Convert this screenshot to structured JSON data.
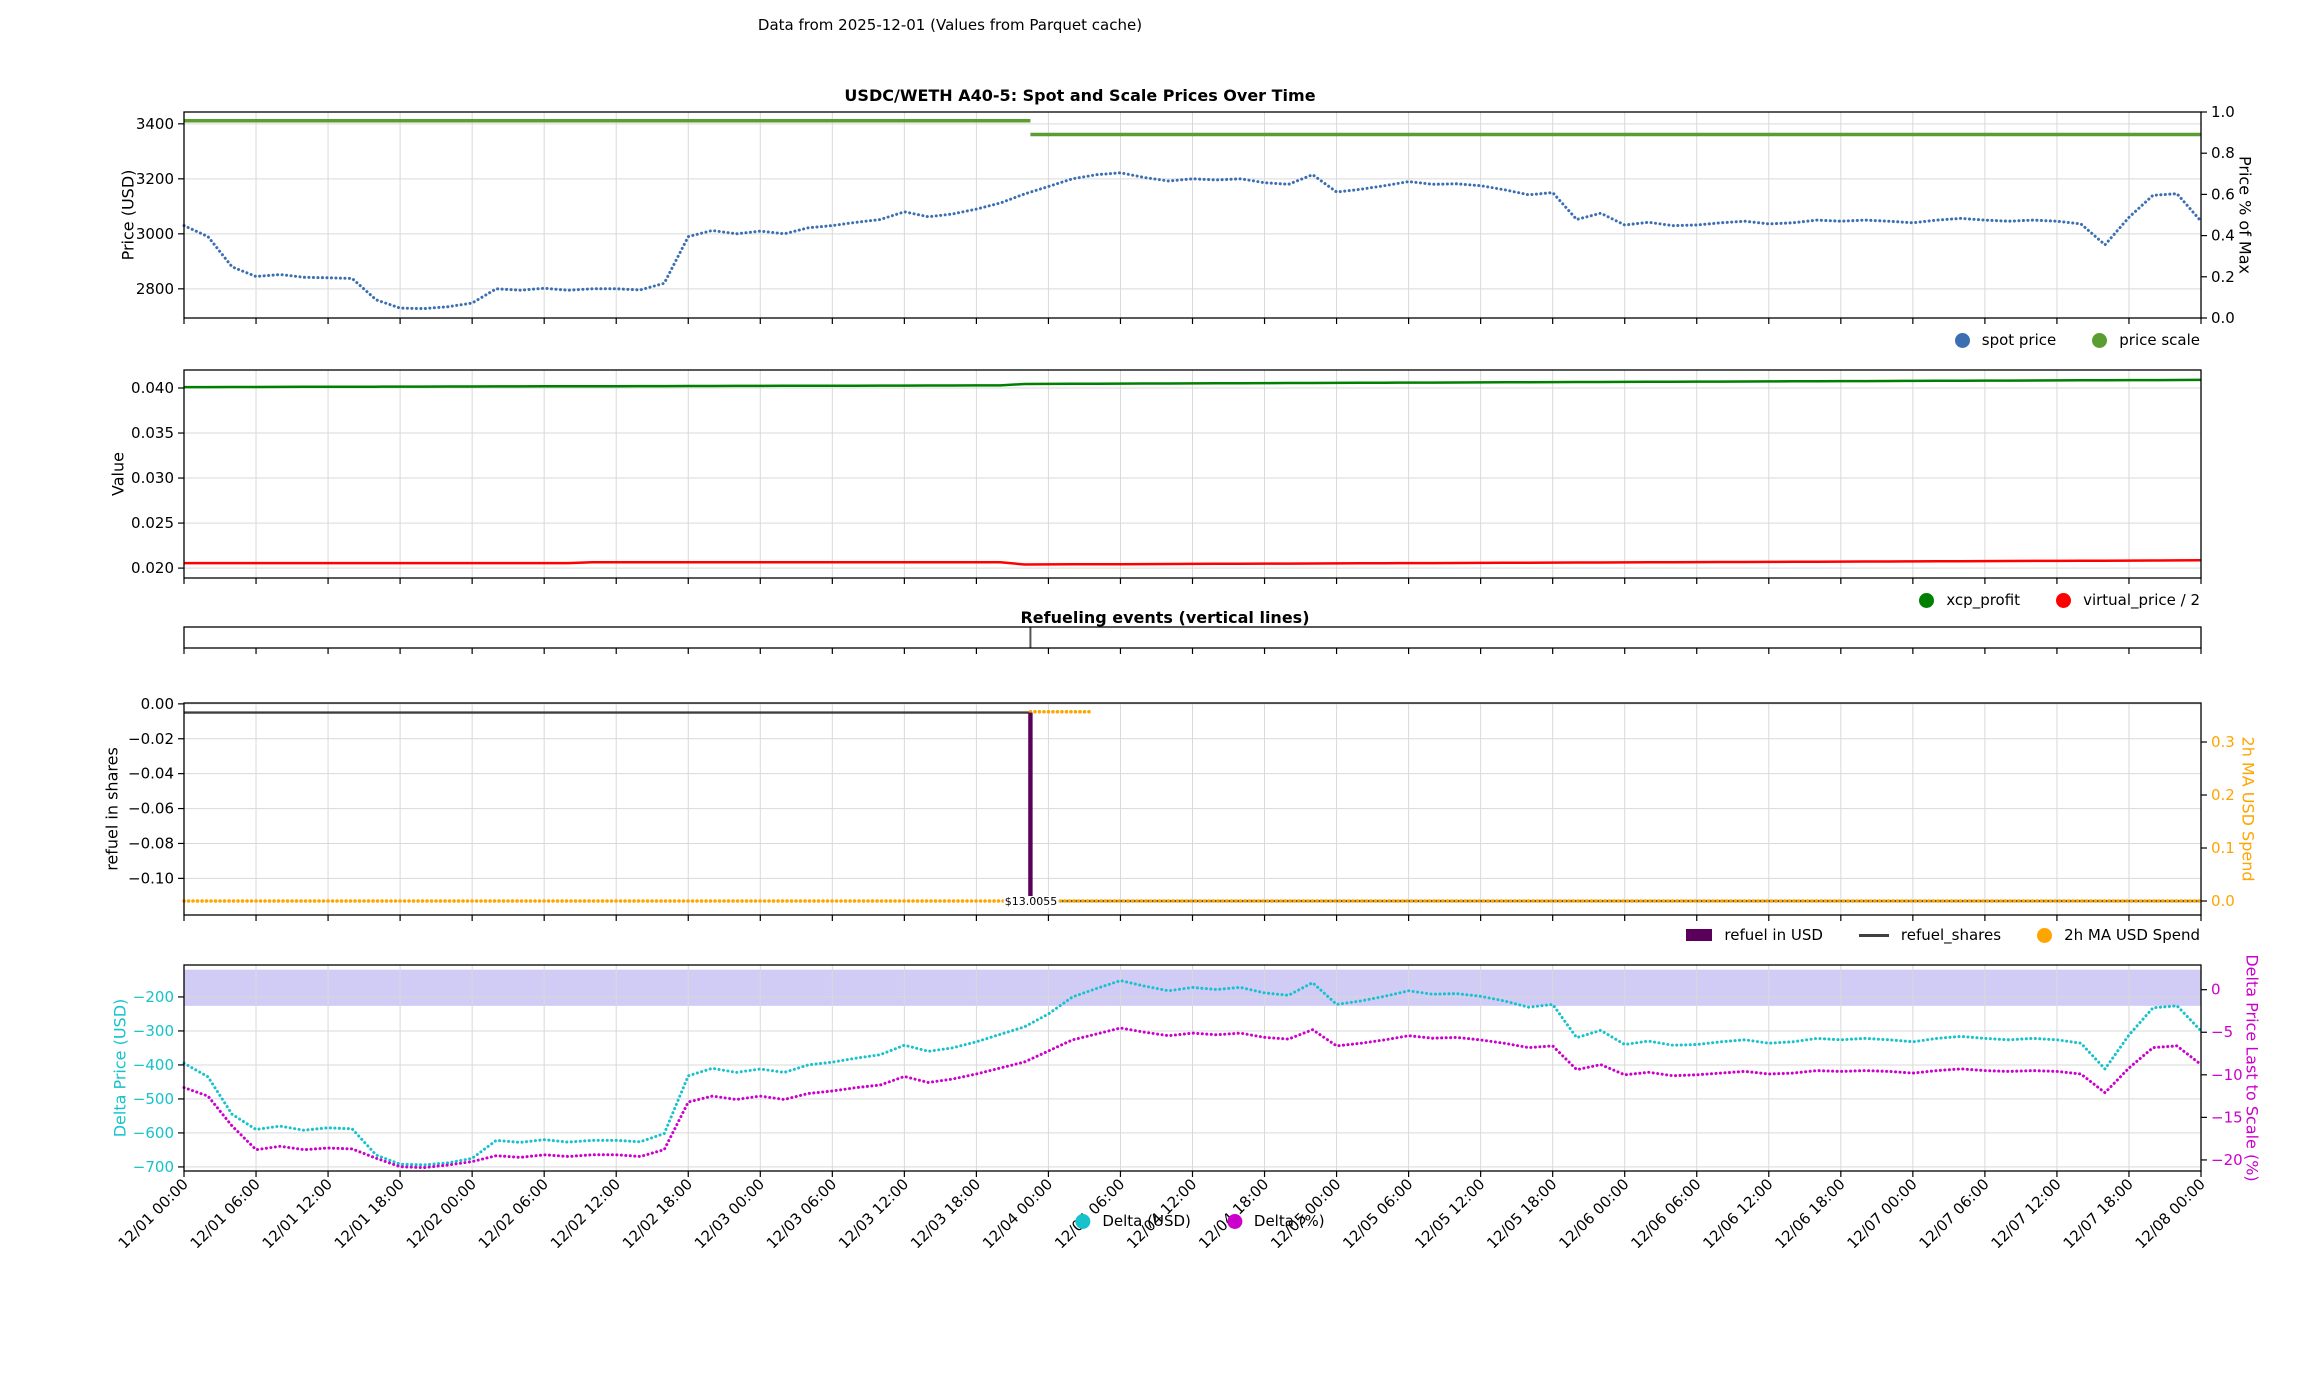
{
  "suptitle": "Data from 2025-12-01 (Values from Parquet cache)",
  "colors": {
    "spot": "#3b6fb2",
    "price_scale": "#5a9e32",
    "xcp_profit": "#008000",
    "virtual_price": "#ff0000",
    "refuel_usd": "#5a005a",
    "refuel_shares": "#404040",
    "usd_spend": "#ffa500",
    "delta_usd": "#16c2cb",
    "delta_pct": "#cc00cc",
    "band": "rgba(124,110,228,0.35)",
    "grid": "#d9d9d9",
    "event_line": "#555555"
  },
  "xticks": {
    "step_hours": 6,
    "labels": [
      "12/01 00:00",
      "12/01 06:00",
      "12/01 12:00",
      "12/01 18:00",
      "12/02 00:00",
      "12/02 06:00",
      "12/02 12:00",
      "12/02 18:00",
      "12/03 00:00",
      "12/03 06:00",
      "12/03 12:00",
      "12/03 18:00",
      "12/04 00:00",
      "12/04 06:00",
      "12/04 12:00",
      "12/04 18:00",
      "12/05 00:00",
      "12/05 06:00",
      "12/05 12:00",
      "12/05 18:00",
      "12/06 00:00",
      "12/06 06:00",
      "12/06 12:00",
      "12/06 18:00",
      "12/07 00:00",
      "12/07 06:00",
      "12/07 12:00",
      "12/07 18:00",
      "12/08 00:00"
    ]
  },
  "chart_data": [
    {
      "type": "line",
      "title": "USDC/WETH A40-5: Spot and Scale Prices Over Time",
      "ylabel": "Price (USD)",
      "ylabel_right": "Price % of Max",
      "ylim": [
        2694,
        3443
      ],
      "ylim_right": [
        0.0,
        1.0
      ],
      "yticks": {
        "values": [
          3400,
          3200,
          3000,
          2800
        ],
        "labels": [
          "3400",
          "3200",
          "3000",
          "2800"
        ]
      },
      "yticks_right": {
        "values": [
          1.0,
          0.8,
          0.6,
          0.4,
          0.2,
          0.0
        ],
        "labels": [
          "1.0",
          "0.8",
          "0.6",
          "0.4",
          "0.2",
          "0.0"
        ]
      },
      "x_start_hour": 0,
      "x_step_hours": 2,
      "series": [
        {
          "name": "spot price",
          "axis": "left",
          "style": "dotted",
          "width": 3,
          "color_key": "spot",
          "values": [
            3030,
            2990,
            2880,
            2845,
            2852,
            2842,
            2840,
            2838,
            2760,
            2730,
            2728,
            2735,
            2748,
            2800,
            2795,
            2802,
            2795,
            2800,
            2800,
            2796,
            2820,
            2990,
            3012,
            3000,
            3010,
            3000,
            3022,
            3030,
            3042,
            3052,
            3080,
            3062,
            3072,
            3090,
            3112,
            3145,
            3172,
            3200,
            3215,
            3222,
            3205,
            3192,
            3200,
            3196,
            3200,
            3186,
            3180,
            3215,
            3152,
            3162,
            3175,
            3190,
            3180,
            3182,
            3175,
            3160,
            3142,
            3150,
            3052,
            3075,
            3032,
            3042,
            3030,
            3032,
            3040,
            3046,
            3036,
            3040,
            3050,
            3046,
            3050,
            3046,
            3040,
            3050,
            3056,
            3050,
            3046,
            3050,
            3046,
            3036,
            2960,
            3060,
            3140,
            3146,
            3046
          ]
        }
      ],
      "segments": [
        {
          "name": "price scale",
          "axis": "left",
          "style": "solid",
          "width": 3.5,
          "color_key": "price_scale",
          "parts": [
            [
              0,
              70.5,
              3411
            ],
            [
              70.5,
              168,
              3361
            ]
          ]
        }
      ],
      "legend": [
        {
          "label": "spot price",
          "marker": "dot",
          "color_key": "spot"
        },
        {
          "label": "price scale",
          "marker": "dot",
          "color_key": "price_scale"
        }
      ]
    },
    {
      "type": "line",
      "ylabel": "Value",
      "ylim": [
        0.0189,
        0.042
      ],
      "yticks": {
        "values": [
          0.04,
          0.035,
          0.03,
          0.025,
          0.02
        ],
        "labels": [
          "0.040",
          "0.035",
          "0.030",
          "0.025",
          "0.020"
        ]
      },
      "x_start_hour": 0,
      "x_step_hours": 2,
      "series": [
        {
          "name": "xcp_profit",
          "axis": "left",
          "style": "solid",
          "width": 2.5,
          "color_key": "xcp_profit",
          "values": [
            0.0401,
            0.040106,
            0.040111,
            0.040117,
            0.040123,
            0.040129,
            0.040134,
            0.04014,
            0.040146,
            0.040151,
            0.040157,
            0.040163,
            0.040168,
            0.040174,
            0.04018,
            0.040186,
            0.040191,
            0.040197,
            0.040203,
            0.040208,
            0.040214,
            0.04022,
            0.040225,
            0.040231,
            0.040237,
            0.040243,
            0.040248,
            0.040254,
            0.04026,
            0.040265,
            0.040271,
            0.040277,
            0.040282,
            0.040288,
            0.040294,
            0.04045,
            0.040459,
            0.040468,
            0.040478,
            0.040487,
            0.040496,
            0.040505,
            0.040514,
            0.040524,
            0.040533,
            0.040542,
            0.040551,
            0.04056,
            0.04057,
            0.040579,
            0.040588,
            0.040597,
            0.040606,
            0.040616,
            0.040625,
            0.040634,
            0.040643,
            0.040652,
            0.040662,
            0.040671,
            0.04068,
            0.040689,
            0.040698,
            0.040708,
            0.040717,
            0.040726,
            0.040735,
            0.040744,
            0.040754,
            0.040763,
            0.040772,
            0.040781,
            0.04079,
            0.0408,
            0.040809,
            0.040818,
            0.040827,
            0.040836,
            0.040846,
            0.040855,
            0.040864,
            0.040873,
            0.040882,
            0.040892,
            0.040901
          ]
        },
        {
          "name": "virtual_price / 2",
          "axis": "left",
          "style": "solid",
          "width": 2.5,
          "color_key": "virtual_price",
          "values": [
            0.02056,
            0.02056,
            0.02056,
            0.02056,
            0.02056,
            0.02056,
            0.02056,
            0.02056,
            0.02056,
            0.02056,
            0.02056,
            0.02056,
            0.02056,
            0.02056,
            0.02056,
            0.02056,
            0.02056,
            0.02066,
            0.02066,
            0.02066,
            0.02066,
            0.02066,
            0.02066,
            0.02066,
            0.02066,
            0.02066,
            0.02066,
            0.02066,
            0.02066,
            0.02066,
            0.02066,
            0.02066,
            0.02066,
            0.02066,
            0.02066,
            0.0204,
            0.020409,
            0.020419,
            0.020428,
            0.020438,
            0.020447,
            0.020456,
            0.020466,
            0.020475,
            0.020485,
            0.020494,
            0.020503,
            0.020513,
            0.020522,
            0.020532,
            0.020541,
            0.02055,
            0.02056,
            0.020569,
            0.020579,
            0.020588,
            0.020597,
            0.020607,
            0.020616,
            0.020626,
            0.020635,
            0.020644,
            0.020654,
            0.020663,
            0.020673,
            0.020682,
            0.020691,
            0.020701,
            0.02071,
            0.02072,
            0.020729,
            0.020738,
            0.020748,
            0.020757,
            0.020767,
            0.020776,
            0.020785,
            0.020795,
            0.020804,
            0.020814,
            0.020823,
            0.020832,
            0.020842,
            0.020851,
            0.020861
          ]
        }
      ],
      "legend": [
        {
          "label": "xcp_profit",
          "marker": "dot",
          "color_key": "xcp_profit"
        },
        {
          "label": "virtual_price / 2",
          "marker": "dot",
          "color_key": "virtual_price"
        }
      ]
    },
    {
      "type": "event",
      "title": "Refueling events (vertical lines)",
      "events_hours": [
        70.5
      ]
    },
    {
      "type": "mixed",
      "ylabel": "refuel in shares",
      "ylabel_right": "2h MA USD Spend",
      "ylim": [
        -0.121,
        0.0005
      ],
      "ylim_right": [
        -0.0264,
        0.3736
      ],
      "yticks": {
        "values": [
          0.0,
          -0.02,
          -0.04,
          -0.06,
          -0.08,
          -0.1
        ],
        "labels": [
          "0.00",
          "−0.02",
          "−0.04",
          "−0.06",
          "−0.08",
          "−0.10"
        ]
      },
      "yticks_right": {
        "values": [
          0.3,
          0.2,
          0.1,
          0.0
        ],
        "labels": [
          "0.3",
          "0.2",
          "0.1",
          "0.0"
        ]
      },
      "segments": [
        {
          "name": "refuel_shares",
          "axis": "left",
          "style": "solid",
          "width": 2.4,
          "color_key": "refuel_shares",
          "parts": [
            [
              0,
              70.5,
              -0.005
            ],
            [
              70.5,
              168,
              -0.113
            ]
          ]
        },
        {
          "name": "2h MA USD Spend",
          "axis": "right",
          "style": "dotted",
          "width": 3.5,
          "color_key": "usd_spend",
          "parts": [
            [
              0,
              70.5,
              0.0
            ],
            [
              70.5,
              75.5,
              0.357
            ],
            [
              73,
              168,
              0.0
            ]
          ]
        }
      ],
      "bars": [
        {
          "hour": 70.5,
          "usd": 13.0055,
          "label": "$13.0055",
          "from_shares": -0.005,
          "to_shares": -0.113
        }
      ],
      "legend": [
        {
          "label": "refuel in USD",
          "marker": "patch",
          "color_key": "refuel_usd"
        },
        {
          "label": "refuel_shares",
          "marker": "line",
          "color_key": "refuel_shares"
        },
        {
          "label": "2h MA USD Spend",
          "marker": "dot",
          "color_key": "usd_spend"
        }
      ]
    },
    {
      "type": "line",
      "ylabel": "Delta Price (USD)",
      "ylabel_right": "Delta Price Last to Scale (%)",
      "ylim": [
        -712,
        -106
      ],
      "ylim_right": [
        -21.3,
        2.9
      ],
      "band_right": [
        -1.9,
        2.35
      ],
      "yticks": {
        "values": [
          -200,
          -300,
          -400,
          -500,
          -600,
          -700
        ],
        "labels": [
          "−200",
          "−300",
          "−400",
          "−500",
          "−600",
          "−700"
        ]
      },
      "yticks_right": {
        "values": [
          0,
          -5,
          -10,
          -15,
          -20
        ],
        "labels": [
          "0",
          "−5",
          "−10",
          "−15",
          "−20"
        ]
      },
      "x_start_hour": 0,
      "x_step_hours": 2,
      "series": [
        {
          "name": "Delta (USD)",
          "axis": "left",
          "style": "dotted",
          "width": 3,
          "color_key": "delta_usd",
          "values": [
            -395,
            -435,
            -545,
            -590,
            -580,
            -592,
            -585,
            -588,
            -665,
            -692,
            -694,
            -688,
            -675,
            -622,
            -628,
            -620,
            -627,
            -622,
            -622,
            -626,
            -602,
            -432,
            -410,
            -422,
            -412,
            -422,
            -400,
            -392,
            -380,
            -370,
            -342,
            -360,
            -350,
            -332,
            -310,
            -288,
            -250,
            -200,
            -175,
            -152,
            -168,
            -182,
            -172,
            -178,
            -172,
            -188,
            -195,
            -158,
            -222,
            -212,
            -198,
            -182,
            -192,
            -190,
            -198,
            -212,
            -230,
            -222,
            -320,
            -298,
            -340,
            -330,
            -342,
            -340,
            -332,
            -326,
            -336,
            -332,
            -322,
            -326,
            -322,
            -326,
            -332,
            -322,
            -316,
            -322,
            -326,
            -322,
            -326,
            -336,
            -412,
            -312,
            -232,
            -226,
            -300
          ]
        },
        {
          "name": "Delta (%)",
          "axis": "right",
          "style": "dotted",
          "width": 3,
          "color_key": "delta_pct",
          "values": [
            -11.5,
            -12.5,
            -16.0,
            -18.8,
            -18.4,
            -18.8,
            -18.6,
            -18.7,
            -19.8,
            -20.8,
            -20.9,
            -20.6,
            -20.2,
            -19.5,
            -19.7,
            -19.4,
            -19.6,
            -19.4,
            -19.4,
            -19.6,
            -18.8,
            -13.2,
            -12.5,
            -12.9,
            -12.5,
            -12.9,
            -12.2,
            -11.9,
            -11.5,
            -11.2,
            -10.2,
            -10.9,
            -10.5,
            -9.9,
            -9.2,
            -8.5,
            -7.2,
            -5.9,
            -5.2,
            -4.5,
            -5.0,
            -5.4,
            -5.1,
            -5.3,
            -5.1,
            -5.6,
            -5.8,
            -4.7,
            -6.6,
            -6.3,
            -5.9,
            -5.4,
            -5.7,
            -5.6,
            -5.9,
            -6.3,
            -6.8,
            -6.6,
            -9.4,
            -8.8,
            -10.0,
            -9.7,
            -10.1,
            -10.0,
            -9.8,
            -9.6,
            -9.9,
            -9.8,
            -9.5,
            -9.6,
            -9.5,
            -9.6,
            -9.8,
            -9.5,
            -9.3,
            -9.5,
            -9.6,
            -9.5,
            -9.6,
            -9.9,
            -12.1,
            -9.2,
            -6.8,
            -6.6,
            -8.8
          ]
        }
      ],
      "legend": [
        {
          "label": "Delta (USD)",
          "marker": "dot",
          "color_key": "delta_usd"
        },
        {
          "label": "Delta (%)",
          "marker": "dot",
          "color_key": "delta_pct"
        }
      ]
    }
  ]
}
